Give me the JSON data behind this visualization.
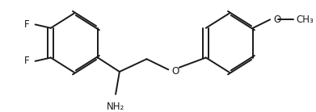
{
  "background_color": "#ffffff",
  "line_color": "#1a1a1a",
  "line_width": 1.4,
  "font_size": 8.5,
  "figsize": [
    3.91,
    1.39
  ],
  "dpi": 100,
  "xlim": [
    0,
    391
  ],
  "ylim": [
    0,
    139
  ]
}
